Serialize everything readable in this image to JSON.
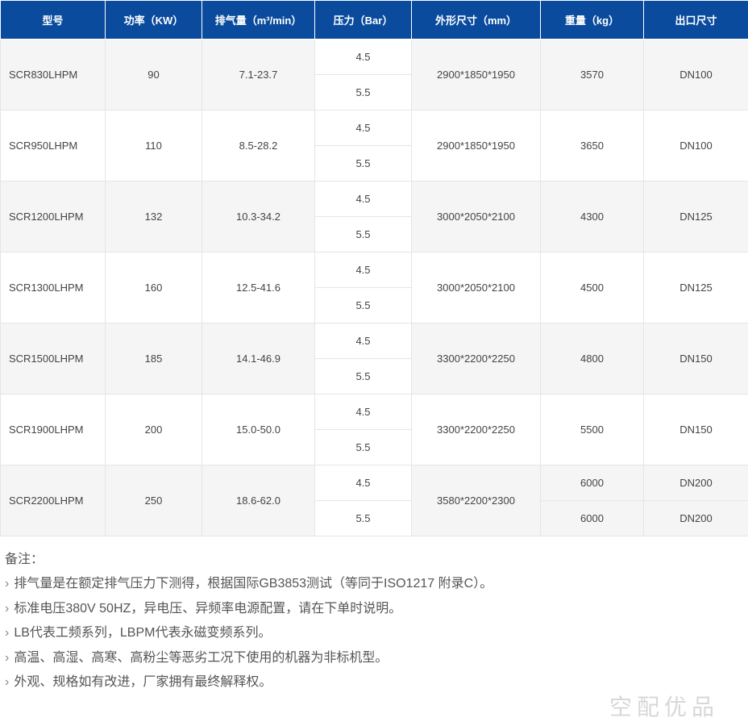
{
  "headers": {
    "model": "型号",
    "power": "功率（KW）",
    "airflow": "排气量（m³/min）",
    "pressure": "压力（Bar）",
    "dimensions": "外形尺寸（mm）",
    "weight": "重量（kg）",
    "outlet": "出口尺寸"
  },
  "rows": [
    {
      "model": "SCR830LHPM",
      "power": "90",
      "airflow": "7.1-23.7",
      "p1": "4.5",
      "p2": "5.5",
      "dim": "2900*1850*1950",
      "w1": "3570",
      "w2": "3570",
      "o1": "DN100",
      "o2": "DN100",
      "mergeWO": true
    },
    {
      "model": "SCR950LHPM",
      "power": "110",
      "airflow": "8.5-28.2",
      "p1": "4.5",
      "p2": "5.5",
      "dim": "2900*1850*1950",
      "w1": "3650",
      "w2": "3650",
      "o1": "DN100",
      "o2": "DN100",
      "mergeWO": true
    },
    {
      "model": "SCR1200LHPM",
      "power": "132",
      "airflow": "10.3-34.2",
      "p1": "4.5",
      "p2": "5.5",
      "dim": "3000*2050*2100",
      "w1": "4300",
      "w2": "4300",
      "o1": "DN125",
      "o2": "DN125",
      "mergeWO": true
    },
    {
      "model": "SCR1300LHPM",
      "power": "160",
      "airflow": "12.5-41.6",
      "p1": "4.5",
      "p2": "5.5",
      "dim": "3000*2050*2100",
      "w1": "4500",
      "w2": "4500",
      "o1": "DN125",
      "o2": "DN125",
      "mergeWO": true
    },
    {
      "model": "SCR1500LHPM",
      "power": "185",
      "airflow": "14.1-46.9",
      "p1": "4.5",
      "p2": "5.5",
      "dim": "3300*2200*2250",
      "w1": "4800",
      "w2": "4800",
      "o1": "DN150",
      "o2": "DN150",
      "mergeWO": true
    },
    {
      "model": "SCR1900LHPM",
      "power": "200",
      "airflow": "15.0-50.0",
      "p1": "4.5",
      "p2": "5.5",
      "dim": "3300*2200*2250",
      "w1": "5500",
      "w2": "5500",
      "o1": "DN150",
      "o2": "DN150",
      "mergeWO": true
    },
    {
      "model": "SCR2200LHPM",
      "power": "250",
      "airflow": "18.6-62.0",
      "p1": "4.5",
      "p2": "5.5",
      "dim": "3580*2200*2300",
      "w1": "6000",
      "w2": "6000",
      "o1": "DN200",
      "o2": "DN200",
      "mergeWO": false
    }
  ],
  "notes": {
    "title": "备注：",
    "lines": [
      "排气量是在额定排气压力下测得，根据国际GB3853测试（等同于ISO1217 附录C）。",
      "标准电压380V 50HZ，异电压、异频率电源配置，请在下单时说明。",
      "LB代表工频系列，LBPM代表永磁变频系列。",
      "高温、高湿、高寒、高粉尘等恶劣工况下使用的机器为非标机型。",
      "外观、规格如有改进，厂家拥有最终解释权。"
    ]
  },
  "watermark": "空配优品",
  "colors": {
    "header_bg": "#0a4b9e",
    "header_fg": "#ffffff",
    "row_odd_bg": "#f5f5f5",
    "row_even_bg": "#ffffff",
    "border": "#e5e5e5",
    "text": "#444444",
    "watermark": "rgba(140,140,140,0.35)"
  }
}
